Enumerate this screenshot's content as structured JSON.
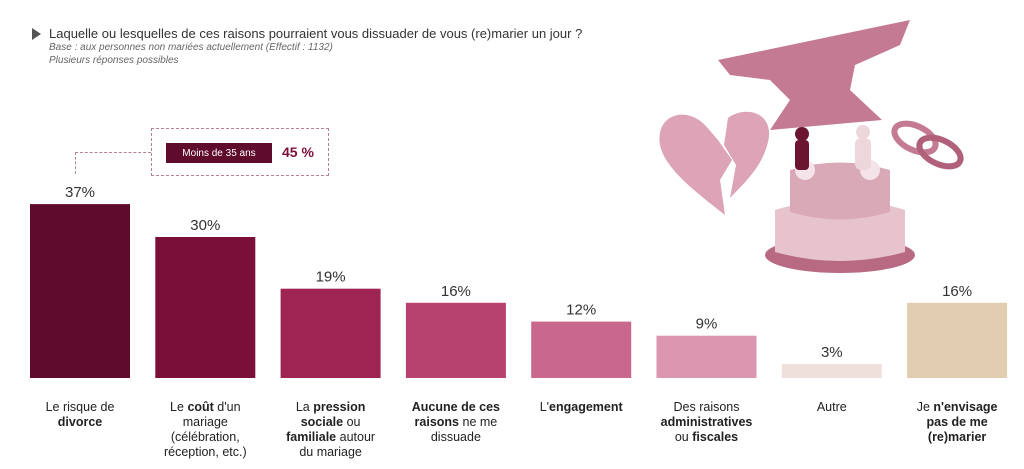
{
  "header": {
    "title": "Laquelle ou lesquelles de ces raisons pourraient vous dissuader de vous (re)marier un jour ?",
    "base": "Base : aux personnes non mariées actuellement (Effectif : 1132)",
    "note": "Plusieurs réponses possibles"
  },
  "callout": {
    "label": "Moins de 35 ans",
    "value": "45 %"
  },
  "chart_data": {
    "type": "bar",
    "categories": [
      "Le risque de divorce",
      "Le coût d'un mariage (célébration, réception, etc.)",
      "La pression sociale ou familiale autour du mariage",
      "Aucune de ces raisons ne me dissuade",
      "L'engagement",
      "Des raisons administratives ou fiscales",
      "Autre",
      "Je n'envisage pas de me (re)marier"
    ],
    "values": [
      37,
      30,
      19,
      16,
      12,
      9,
      3,
      16
    ],
    "value_labels": [
      "37%",
      "30%",
      "19%",
      "16%",
      "12%",
      "9%",
      "3%",
      "16%"
    ],
    "colors": [
      "#5e0b2c",
      "#7a0f3a",
      "#9e2452",
      "#b8426e",
      "#c9678c",
      "#dc97b0",
      "#f0e0dc",
      "#e3cdb1"
    ],
    "ylim": [
      0,
      40
    ],
    "grid": false,
    "legend": "none"
  },
  "labels_rich": [
    [
      [
        "t",
        "Le risque de"
      ],
      [
        "br"
      ],
      [
        "b",
        "divorce"
      ]
    ],
    [
      [
        "t",
        "Le "
      ],
      [
        "b",
        "coût"
      ],
      [
        "t",
        " d'un"
      ],
      [
        "br"
      ],
      [
        "t",
        "mariage"
      ],
      [
        "br"
      ],
      [
        "t",
        "(célébration,"
      ],
      [
        "br"
      ],
      [
        "t",
        "réception, etc.)"
      ]
    ],
    [
      [
        "t",
        "La "
      ],
      [
        "b",
        "pression"
      ],
      [
        "br"
      ],
      [
        "b",
        "sociale"
      ],
      [
        "t",
        " ou"
      ],
      [
        "br"
      ],
      [
        "b",
        "familiale"
      ],
      [
        "t",
        " autour"
      ],
      [
        "br"
      ],
      [
        "t",
        "du mariage"
      ]
    ],
    [
      [
        "b",
        "Aucune de ces"
      ],
      [
        "br"
      ],
      [
        "b",
        "raisons"
      ],
      [
        "t",
        " ne me"
      ],
      [
        "br"
      ],
      [
        "t",
        "dissuade"
      ]
    ],
    [
      [
        "t",
        "L'"
      ],
      [
        "b",
        "engagement"
      ]
    ],
    [
      [
        "t",
        "Des raisons"
      ],
      [
        "br"
      ],
      [
        "b",
        "administratives"
      ],
      [
        "br"
      ],
      [
        "t",
        "ou "
      ],
      [
        "b",
        "fiscales"
      ]
    ],
    [
      [
        "t",
        "Autre"
      ]
    ],
    [
      [
        "t",
        "Je "
      ],
      [
        "b",
        "n'envisage"
      ],
      [
        "br"
      ],
      [
        "b",
        "pas de me"
      ],
      [
        "br"
      ],
      [
        "b",
        "(re)marier"
      ]
    ]
  ]
}
